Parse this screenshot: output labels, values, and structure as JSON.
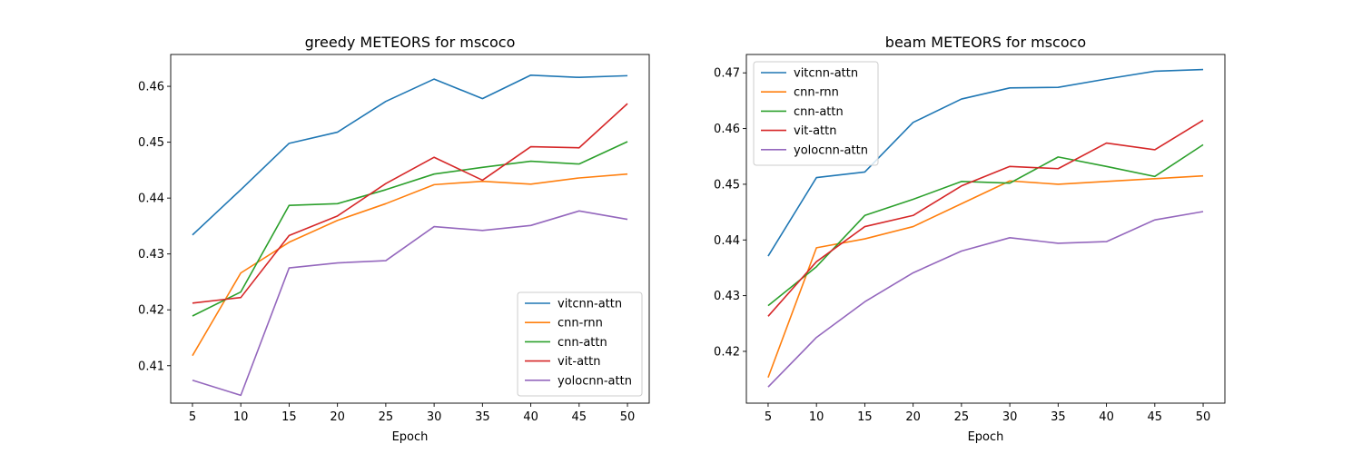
{
  "chart_data": [
    {
      "type": "line",
      "title": "greedy METEORS for mscoco",
      "xlabel": "Epoch",
      "ylabel": "",
      "x": [
        5,
        10,
        15,
        20,
        25,
        30,
        35,
        40,
        45,
        50
      ],
      "xlim": [
        2.75,
        52.25
      ],
      "ylim": [
        0.4033,
        0.4657
      ],
      "yticks": [
        0.41,
        0.42,
        0.43,
        0.44,
        0.45,
        0.46
      ],
      "ytick_labels": [
        "0.41",
        "0.42",
        "0.43",
        "0.44",
        "0.45",
        "0.46"
      ],
      "xticks": [
        5,
        10,
        15,
        20,
        25,
        30,
        35,
        40,
        45,
        50
      ],
      "xtick_labels": [
        "5",
        "10",
        "15",
        "20",
        "25",
        "30",
        "35",
        "40",
        "45",
        "50"
      ],
      "grid": false,
      "legend_position": "lower-right",
      "series": [
        {
          "name": "vitcnn-attn",
          "color": "#1f77b4",
          "values": [
            0.4334,
            0.4415,
            0.4498,
            0.4518,
            0.4573,
            0.4613,
            0.4578,
            0.462,
            0.4616,
            0.4619
          ]
        },
        {
          "name": "cnn-rnn",
          "color": "#ff7f0e",
          "values": [
            0.4118,
            0.4266,
            0.4321,
            0.436,
            0.439,
            0.4424,
            0.443,
            0.4425,
            0.4436,
            0.4443
          ]
        },
        {
          "name": "cnn-attn",
          "color": "#2ca02c",
          "values": [
            0.4189,
            0.4232,
            0.4387,
            0.439,
            0.4415,
            0.4443,
            0.4455,
            0.4466,
            0.4461,
            0.4501
          ]
        },
        {
          "name": "vit-attn",
          "color": "#d62728",
          "values": [
            0.4212,
            0.4222,
            0.4333,
            0.4368,
            0.4426,
            0.4473,
            0.4432,
            0.4492,
            0.449,
            0.4569
          ]
        },
        {
          "name": "yolocnn-attn",
          "color": "#9467bd",
          "values": [
            0.4074,
            0.4047,
            0.4275,
            0.4284,
            0.4288,
            0.4349,
            0.4342,
            0.4351,
            0.4377,
            0.4362
          ]
        }
      ]
    },
    {
      "type": "line",
      "title": "beam METEORS for mscoco",
      "xlabel": "Epoch",
      "ylabel": "",
      "x": [
        5,
        10,
        15,
        20,
        25,
        30,
        35,
        40,
        45,
        50
      ],
      "xlim": [
        2.75,
        52.25
      ],
      "ylim": [
        0.4107,
        0.4733
      ],
      "yticks": [
        0.42,
        0.43,
        0.44,
        0.45,
        0.46,
        0.47
      ],
      "ytick_labels": [
        "0.42",
        "0.43",
        "0.44",
        "0.45",
        "0.46",
        "0.47"
      ],
      "xticks": [
        5,
        10,
        15,
        20,
        25,
        30,
        35,
        40,
        45,
        50
      ],
      "xtick_labels": [
        "5",
        "10",
        "15",
        "20",
        "25",
        "30",
        "35",
        "40",
        "45",
        "50"
      ],
      "grid": false,
      "legend_position": "upper-left",
      "series": [
        {
          "name": "vitcnn-attn",
          "color": "#1f77b4",
          "values": [
            0.4371,
            0.4512,
            0.4522,
            0.4611,
            0.4653,
            0.4673,
            0.4674,
            0.4689,
            0.4703,
            0.4706
          ]
        },
        {
          "name": "cnn-rnn",
          "color": "#ff7f0e",
          "values": [
            0.4153,
            0.4386,
            0.4402,
            0.4424,
            0.4465,
            0.4506,
            0.45,
            0.4505,
            0.451,
            0.4515
          ]
        },
        {
          "name": "cnn-attn",
          "color": "#2ca02c",
          "values": [
            0.4282,
            0.4352,
            0.4444,
            0.4473,
            0.4505,
            0.4502,
            0.4549,
            0.4532,
            0.4514,
            0.4571
          ]
        },
        {
          "name": "vit-attn",
          "color": "#d62728",
          "values": [
            0.4263,
            0.4361,
            0.4424,
            0.4444,
            0.4497,
            0.4532,
            0.4528,
            0.4574,
            0.4562,
            0.4615
          ]
        },
        {
          "name": "yolocnn-attn",
          "color": "#9467bd",
          "values": [
            0.4136,
            0.4225,
            0.4289,
            0.4341,
            0.438,
            0.4404,
            0.4394,
            0.4397,
            0.4436,
            0.4451
          ]
        }
      ]
    }
  ]
}
